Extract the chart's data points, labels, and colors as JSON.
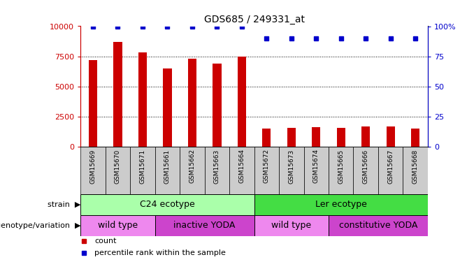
{
  "title": "GDS685 / 249331_at",
  "categories": [
    "GSM15669",
    "GSM15670",
    "GSM15671",
    "GSM15661",
    "GSM15662",
    "GSM15663",
    "GSM15664",
    "GSM15672",
    "GSM15673",
    "GSM15674",
    "GSM15665",
    "GSM15666",
    "GSM15667",
    "GSM15668"
  ],
  "counts": [
    7200,
    8700,
    7800,
    6500,
    7300,
    6900,
    7500,
    1500,
    1550,
    1600,
    1550,
    1700,
    1700,
    1500
  ],
  "percentile_ranks": [
    100,
    100,
    100,
    100,
    100,
    100,
    100,
    90,
    90,
    90,
    90,
    90,
    90,
    90
  ],
  "bar_color": "#cc0000",
  "dot_color": "#0000cc",
  "ylim_left": [
    0,
    10000
  ],
  "ylim_right": [
    0,
    100
  ],
  "yticks_left": [
    0,
    2500,
    5000,
    7500,
    10000
  ],
  "yticks_right": [
    0,
    25,
    50,
    75,
    100
  ],
  "ytick_labels_left": [
    "0",
    "2500",
    "5000",
    "7500",
    "10000"
  ],
  "ytick_labels_right": [
    "0",
    "25",
    "50",
    "75",
    "100%"
  ],
  "strain_labels": [
    {
      "text": "C24 ecotype",
      "start": 0,
      "end": 6,
      "color": "#aaffaa"
    },
    {
      "text": "Ler ecotype",
      "start": 7,
      "end": 13,
      "color": "#44dd44"
    }
  ],
  "genotype_labels": [
    {
      "text": "wild type",
      "start": 0,
      "end": 2,
      "color": "#ee88ee"
    },
    {
      "text": "inactive YODA",
      "start": 3,
      "end": 6,
      "color": "#cc44cc"
    },
    {
      "text": "wild type",
      "start": 7,
      "end": 9,
      "color": "#ee88ee"
    },
    {
      "text": "constitutive YODA",
      "start": 10,
      "end": 13,
      "color": "#cc44cc"
    }
  ],
  "legend_count_color": "#cc0000",
  "legend_pct_color": "#0000cc",
  "legend_count_label": "count",
  "legend_pct_label": "percentile rank within the sample",
  "axis_left_color": "#cc0000",
  "axis_right_color": "#0000cc",
  "tick_label_bg": "#d0d0d0",
  "strain_row_label": "strain",
  "geno_row_label": "genotype/variation"
}
